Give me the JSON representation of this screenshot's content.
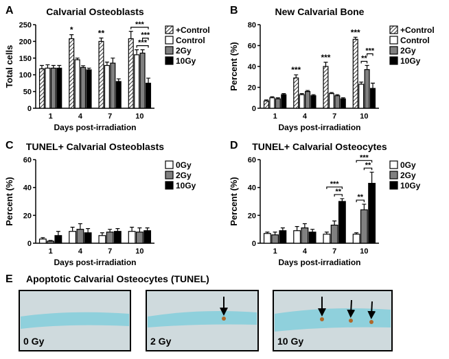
{
  "chart_data": [
    {
      "type": "bar",
      "panel_label": "A",
      "title": "Calvarial Osteoblasts",
      "xlabel": "Days post-irradiation",
      "ylabel": "Total cells",
      "categories": [
        "1",
        "4",
        "7",
        "10"
      ],
      "ylim": [
        0,
        250
      ],
      "yticks": [
        0,
        50,
        100,
        150,
        200,
        250
      ],
      "legend": "right",
      "series": [
        {
          "name": "+Control",
          "color": "#ffffff",
          "pattern": "hatch",
          "values": [
            118,
            208,
            200,
            208
          ],
          "errors": [
            10,
            12,
            10,
            22
          ]
        },
        {
          "name": "Control",
          "color": "#ffffff",
          "values": [
            120,
            145,
            128,
            160
          ],
          "errors": [
            10,
            5,
            10,
            15
          ]
        },
        {
          "name": "2Gy",
          "color": "#808080",
          "values": [
            120,
            122,
            135,
            165
          ],
          "errors": [
            8,
            5,
            15,
            10
          ]
        },
        {
          "name": "10Gy",
          "color": "#000000",
          "values": [
            120,
            115,
            80,
            75
          ],
          "errors": [
            8,
            5,
            8,
            15
          ]
        }
      ],
      "annotations": [
        {
          "text": "*",
          "category": "4",
          "series": "+Control"
        },
        {
          "text": "**",
          "category": "7",
          "series": "+Control"
        },
        {
          "text": "***",
          "category": "10",
          "from": "Control",
          "to": "10Gy"
        },
        {
          "text": "***",
          "category": "10",
          "from": "2Gy",
          "to": "10Gy"
        },
        {
          "text": "***",
          "category": "10",
          "from": "+Control",
          "to": "10Gy"
        }
      ]
    },
    {
      "type": "bar",
      "panel_label": "B",
      "title": "New Calvarial Bone",
      "xlabel": "Days post-irradiation",
      "ylabel": "Percent (%)",
      "categories": [
        "1",
        "4",
        "7",
        "10"
      ],
      "ylim": [
        0,
        80
      ],
      "yticks": [
        0,
        20,
        40,
        60,
        80
      ],
      "legend": "right",
      "series": [
        {
          "name": "+Control",
          "color": "#ffffff",
          "pattern": "hatch",
          "values": [
            7,
            29,
            40,
            66
          ],
          "errors": [
            1,
            3,
            4,
            2
          ]
        },
        {
          "name": "Control",
          "color": "#ffffff",
          "values": [
            10,
            13,
            14,
            23
          ],
          "errors": [
            1,
            1,
            1,
            2
          ]
        },
        {
          "name": "2Gy",
          "color": "#808080",
          "values": [
            9,
            16,
            12,
            37
          ],
          "errors": [
            1,
            1,
            1,
            4
          ]
        },
        {
          "name": "10Gy",
          "color": "#000000",
          "values": [
            13,
            12,
            9,
            19
          ],
          "errors": [
            1,
            1,
            1,
            5
          ]
        }
      ],
      "annotations": [
        {
          "text": "***",
          "category": "4",
          "series": "+Control"
        },
        {
          "text": "***",
          "category": "7",
          "series": "+Control"
        },
        {
          "text": "***",
          "category": "10",
          "series": "+Control"
        },
        {
          "text": "**",
          "category": "10",
          "from": "Control",
          "to": "2Gy"
        },
        {
          "text": "***",
          "category": "10",
          "from": "2Gy",
          "to": "10Gy"
        }
      ]
    },
    {
      "type": "bar",
      "panel_label": "C",
      "title": "TUNEL+ Calvarial Osteoblasts",
      "xlabel": "Days post-irradiation",
      "ylabel": "Percent (%)",
      "categories": [
        "1",
        "4",
        "7",
        "10"
      ],
      "ylim": [
        0,
        60
      ],
      "yticks": [
        0,
        20,
        40,
        60
      ],
      "legend": "right",
      "series": [
        {
          "name": "0Gy",
          "color": "#ffffff",
          "values": [
            3,
            8.5,
            5.5,
            8.5
          ],
          "errors": [
            1,
            3,
            2,
            3
          ]
        },
        {
          "name": "2Gy",
          "color": "#808080",
          "values": [
            1.5,
            10,
            8,
            8
          ],
          "errors": [
            0.5,
            4,
            2,
            3
          ]
        },
        {
          "name": "10Gy",
          "color": "#000000",
          "values": [
            5.5,
            7.5,
            8.5,
            9
          ],
          "errors": [
            3,
            3,
            2,
            2
          ]
        }
      ],
      "annotations": []
    },
    {
      "type": "bar",
      "panel_label": "D",
      "title": "TUNEL+ Calvarial Osteocytes",
      "xlabel": "Days post-irradiation",
      "ylabel": "Percent (%)",
      "categories": [
        "1",
        "4",
        "7",
        "10"
      ],
      "ylim": [
        0,
        60
      ],
      "yticks": [
        0,
        20,
        40,
        60
      ],
      "legend": "right",
      "series": [
        {
          "name": "0Gy",
          "color": "#ffffff",
          "values": [
            7,
            9,
            6.5,
            6.5
          ],
          "errors": [
            1,
            3,
            1.5,
            1
          ]
        },
        {
          "name": "2Gy",
          "color": "#808080",
          "values": [
            6,
            11,
            13,
            24
          ],
          "errors": [
            2,
            3,
            3,
            4
          ]
        },
        {
          "name": "10Gy",
          "color": "#000000",
          "values": [
            9,
            8,
            30,
            43
          ],
          "errors": [
            2,
            2,
            2,
            8
          ]
        }
      ],
      "annotations": [
        {
          "text": "**",
          "category": "7",
          "from": "2Gy",
          "to": "10Gy"
        },
        {
          "text": "***",
          "category": "7",
          "from": "0Gy",
          "to": "10Gy"
        },
        {
          "text": "**",
          "category": "10",
          "from": "0Gy",
          "to": "2Gy"
        },
        {
          "text": "**",
          "category": "10",
          "from": "2Gy",
          "to": "10Gy"
        },
        {
          "text": "***",
          "category": "10",
          "from": "0Gy",
          "to": "10Gy"
        }
      ]
    }
  ],
  "panel_e": {
    "letter": "E",
    "title": "Apoptotic Calvarial Osteocytes (TUNEL)",
    "images": [
      {
        "label": "0 Gy"
      },
      {
        "label": "2 Gy"
      },
      {
        "label": "10 Gy"
      }
    ]
  }
}
